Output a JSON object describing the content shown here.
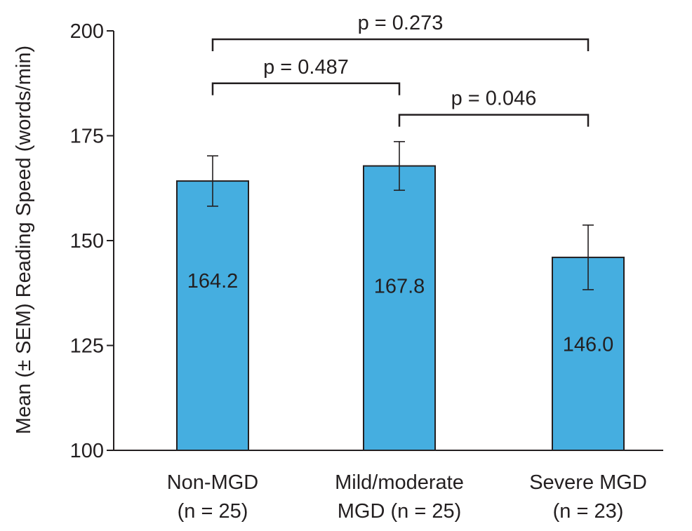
{
  "chart_data": {
    "type": "bar",
    "title": "",
    "xlabel": "",
    "ylabel": "Mean (± SEM) Reading Speed (words/min)",
    "ylim": [
      100,
      200
    ],
    "yticks": [
      100,
      125,
      150,
      175,
      200
    ],
    "grid": false,
    "bar_color": "#45aee0",
    "categories": [
      {
        "line1": "Non-MGD",
        "line2": "(n = 25)"
      },
      {
        "line1": "Mild/moderate",
        "line2": "MGD (n = 25)"
      },
      {
        "line1": "Severe MGD",
        "line2": "(n = 23)"
      }
    ],
    "values": [
      164.2,
      167.8,
      146.0
    ],
    "value_labels": [
      "164.2",
      "167.8",
      "146.0"
    ],
    "sem": [
      6.0,
      5.8,
      7.7
    ],
    "comparisons": [
      {
        "from": 0,
        "to": 2,
        "label": "p = 0.273",
        "level": 198.0
      },
      {
        "from": 0,
        "to": 1,
        "label": "p = 0.487",
        "level": 187.5
      },
      {
        "from": 1,
        "to": 2,
        "label": "p = 0.046",
        "level": 180.0
      }
    ]
  }
}
